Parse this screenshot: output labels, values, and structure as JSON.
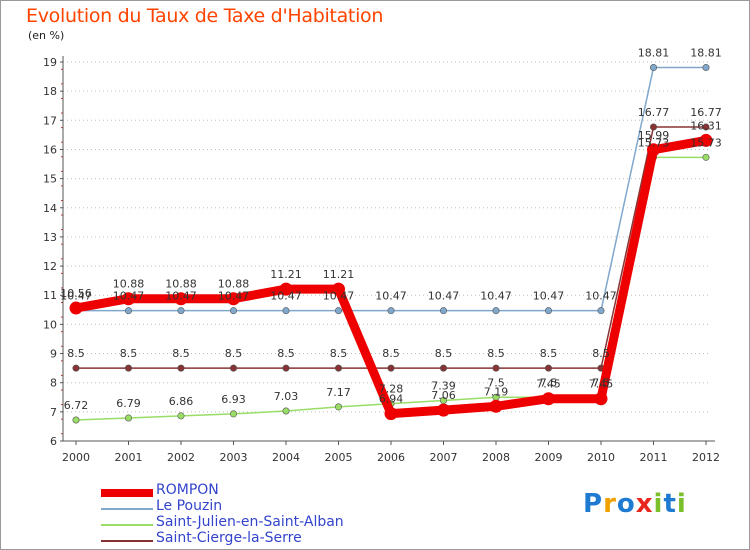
{
  "title": "Evolution du Taux de Taxe d'Habitation",
  "unit_label": "(en %)",
  "logo": [
    "P",
    "r",
    "o",
    "x",
    "i",
    "t",
    "i"
  ],
  "logo_colors": [
    "#1f7ad1",
    "#f0a100",
    "#1f7ad1",
    "#e8261c",
    "#7bbf2a",
    "#1f7ad1",
    "#7bbf2a"
  ],
  "chart_data": {
    "type": "line",
    "title": "Evolution du Taux de Taxe d'Habitation",
    "ylabel": "(en %)",
    "xlabel": "",
    "ylim": [
      6,
      19
    ],
    "yticks": [
      6,
      7,
      8,
      9,
      10,
      11,
      12,
      13,
      14,
      15,
      16,
      17,
      18,
      19
    ],
    "categories": [
      "2000",
      "2001",
      "2002",
      "2003",
      "2004",
      "2005",
      "2006",
      "2007",
      "2008",
      "2009",
      "2010",
      "2011",
      "2012"
    ],
    "grid": "horizontal-dotted",
    "legend_position": "bottom-left",
    "series": [
      {
        "name": "ROMPON",
        "color": "#ee0000",
        "values": [
          10.56,
          10.88,
          10.88,
          10.88,
          11.21,
          11.21,
          6.94,
          7.06,
          7.19,
          7.45,
          7.45,
          15.99,
          16.31
        ],
        "labels": [
          "10.56",
          "10.88",
          "10.88",
          "10.88",
          "11.21",
          "11.21",
          "6.94",
          "7.06",
          "7.19",
          "7.45",
          "7.45",
          "15.99",
          "16.31"
        ]
      },
      {
        "name": "Le Pouzin",
        "color": "#7fa8cc",
        "values": [
          10.47,
          10.47,
          10.47,
          10.47,
          10.47,
          10.47,
          10.47,
          10.47,
          10.47,
          10.47,
          10.47,
          18.81,
          18.81
        ],
        "labels": [
          "10.47",
          "10.47",
          "10.47",
          "10.47",
          "10.47",
          "10.47",
          "10.47",
          "10.47",
          "10.47",
          "10.47",
          "10.47",
          "18.81",
          "18.81"
        ]
      },
      {
        "name": "Saint-Julien-en-Saint-Alban",
        "color": "#99dd66",
        "values": [
          6.72,
          6.79,
          6.86,
          6.93,
          7.03,
          7.17,
          7.28,
          7.39,
          7.5,
          7.5,
          7.5,
          15.73,
          15.73
        ],
        "labels": [
          "6.72",
          "6.79",
          "6.86",
          "6.93",
          "7.03",
          "7.17",
          "7.28",
          "7.39",
          "7.5",
          "7.5",
          "7.5",
          "15.73",
          "15.73"
        ]
      },
      {
        "name": "Saint-Cierge-la-Serre",
        "color": "#883333",
        "values": [
          8.5,
          8.5,
          8.5,
          8.5,
          8.5,
          8.5,
          8.5,
          8.5,
          8.5,
          8.5,
          8.5,
          16.77,
          16.77
        ],
        "labels": [
          "8.5",
          "8.5",
          "8.5",
          "8.5",
          "8.5",
          "8.5",
          "8.5",
          "8.5",
          "8.5",
          "8.5",
          "8.5",
          "16.77",
          "16.77"
        ]
      }
    ]
  }
}
